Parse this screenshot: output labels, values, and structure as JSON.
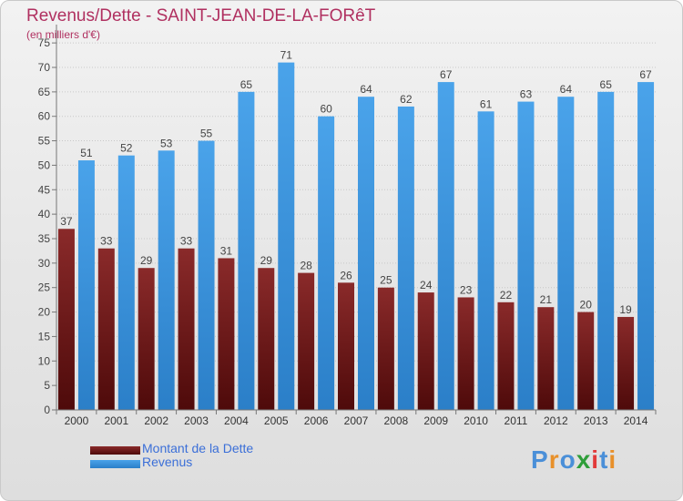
{
  "header": {
    "title": "Revenus/Dette - SAINT-JEAN-DE-LA-FORêT",
    "subtitle": "(en milliers d'€)"
  },
  "logo": {
    "text": "Proxiti",
    "colors": [
      "#4a8fd8",
      "#e8902a",
      "#4a8fd8",
      "#2f9e3a",
      "#e23a3a",
      "#4a8fd8",
      "#e8902a"
    ]
  },
  "colors": {
    "dette": "#7a1a1a",
    "revenus": "#3b93dc",
    "title": "#b03060",
    "legend_text": "#3b6fd8"
  },
  "chart_data": {
    "type": "bar",
    "categories": [
      "2000",
      "2001",
      "2002",
      "2003",
      "2004",
      "2005",
      "2006",
      "2007",
      "2008",
      "2009",
      "2010",
      "2011",
      "2012",
      "2013",
      "2014"
    ],
    "series": [
      {
        "name": "Montant de la Dette",
        "values": [
          37,
          33,
          29,
          33,
          31,
          29,
          28,
          26,
          25,
          24,
          23,
          22,
          21,
          20,
          19
        ]
      },
      {
        "name": "Revenus",
        "values": [
          51,
          52,
          53,
          55,
          65,
          71,
          60,
          64,
          62,
          67,
          61,
          63,
          64,
          65,
          67
        ]
      }
    ],
    "yticks": [
      0,
      5,
      10,
      15,
      20,
      25,
      30,
      35,
      40,
      45,
      50,
      55,
      60,
      65,
      70,
      75
    ],
    "ylim": [
      0,
      78
    ],
    "grid": true,
    "legend_position": "bottom-left"
  }
}
